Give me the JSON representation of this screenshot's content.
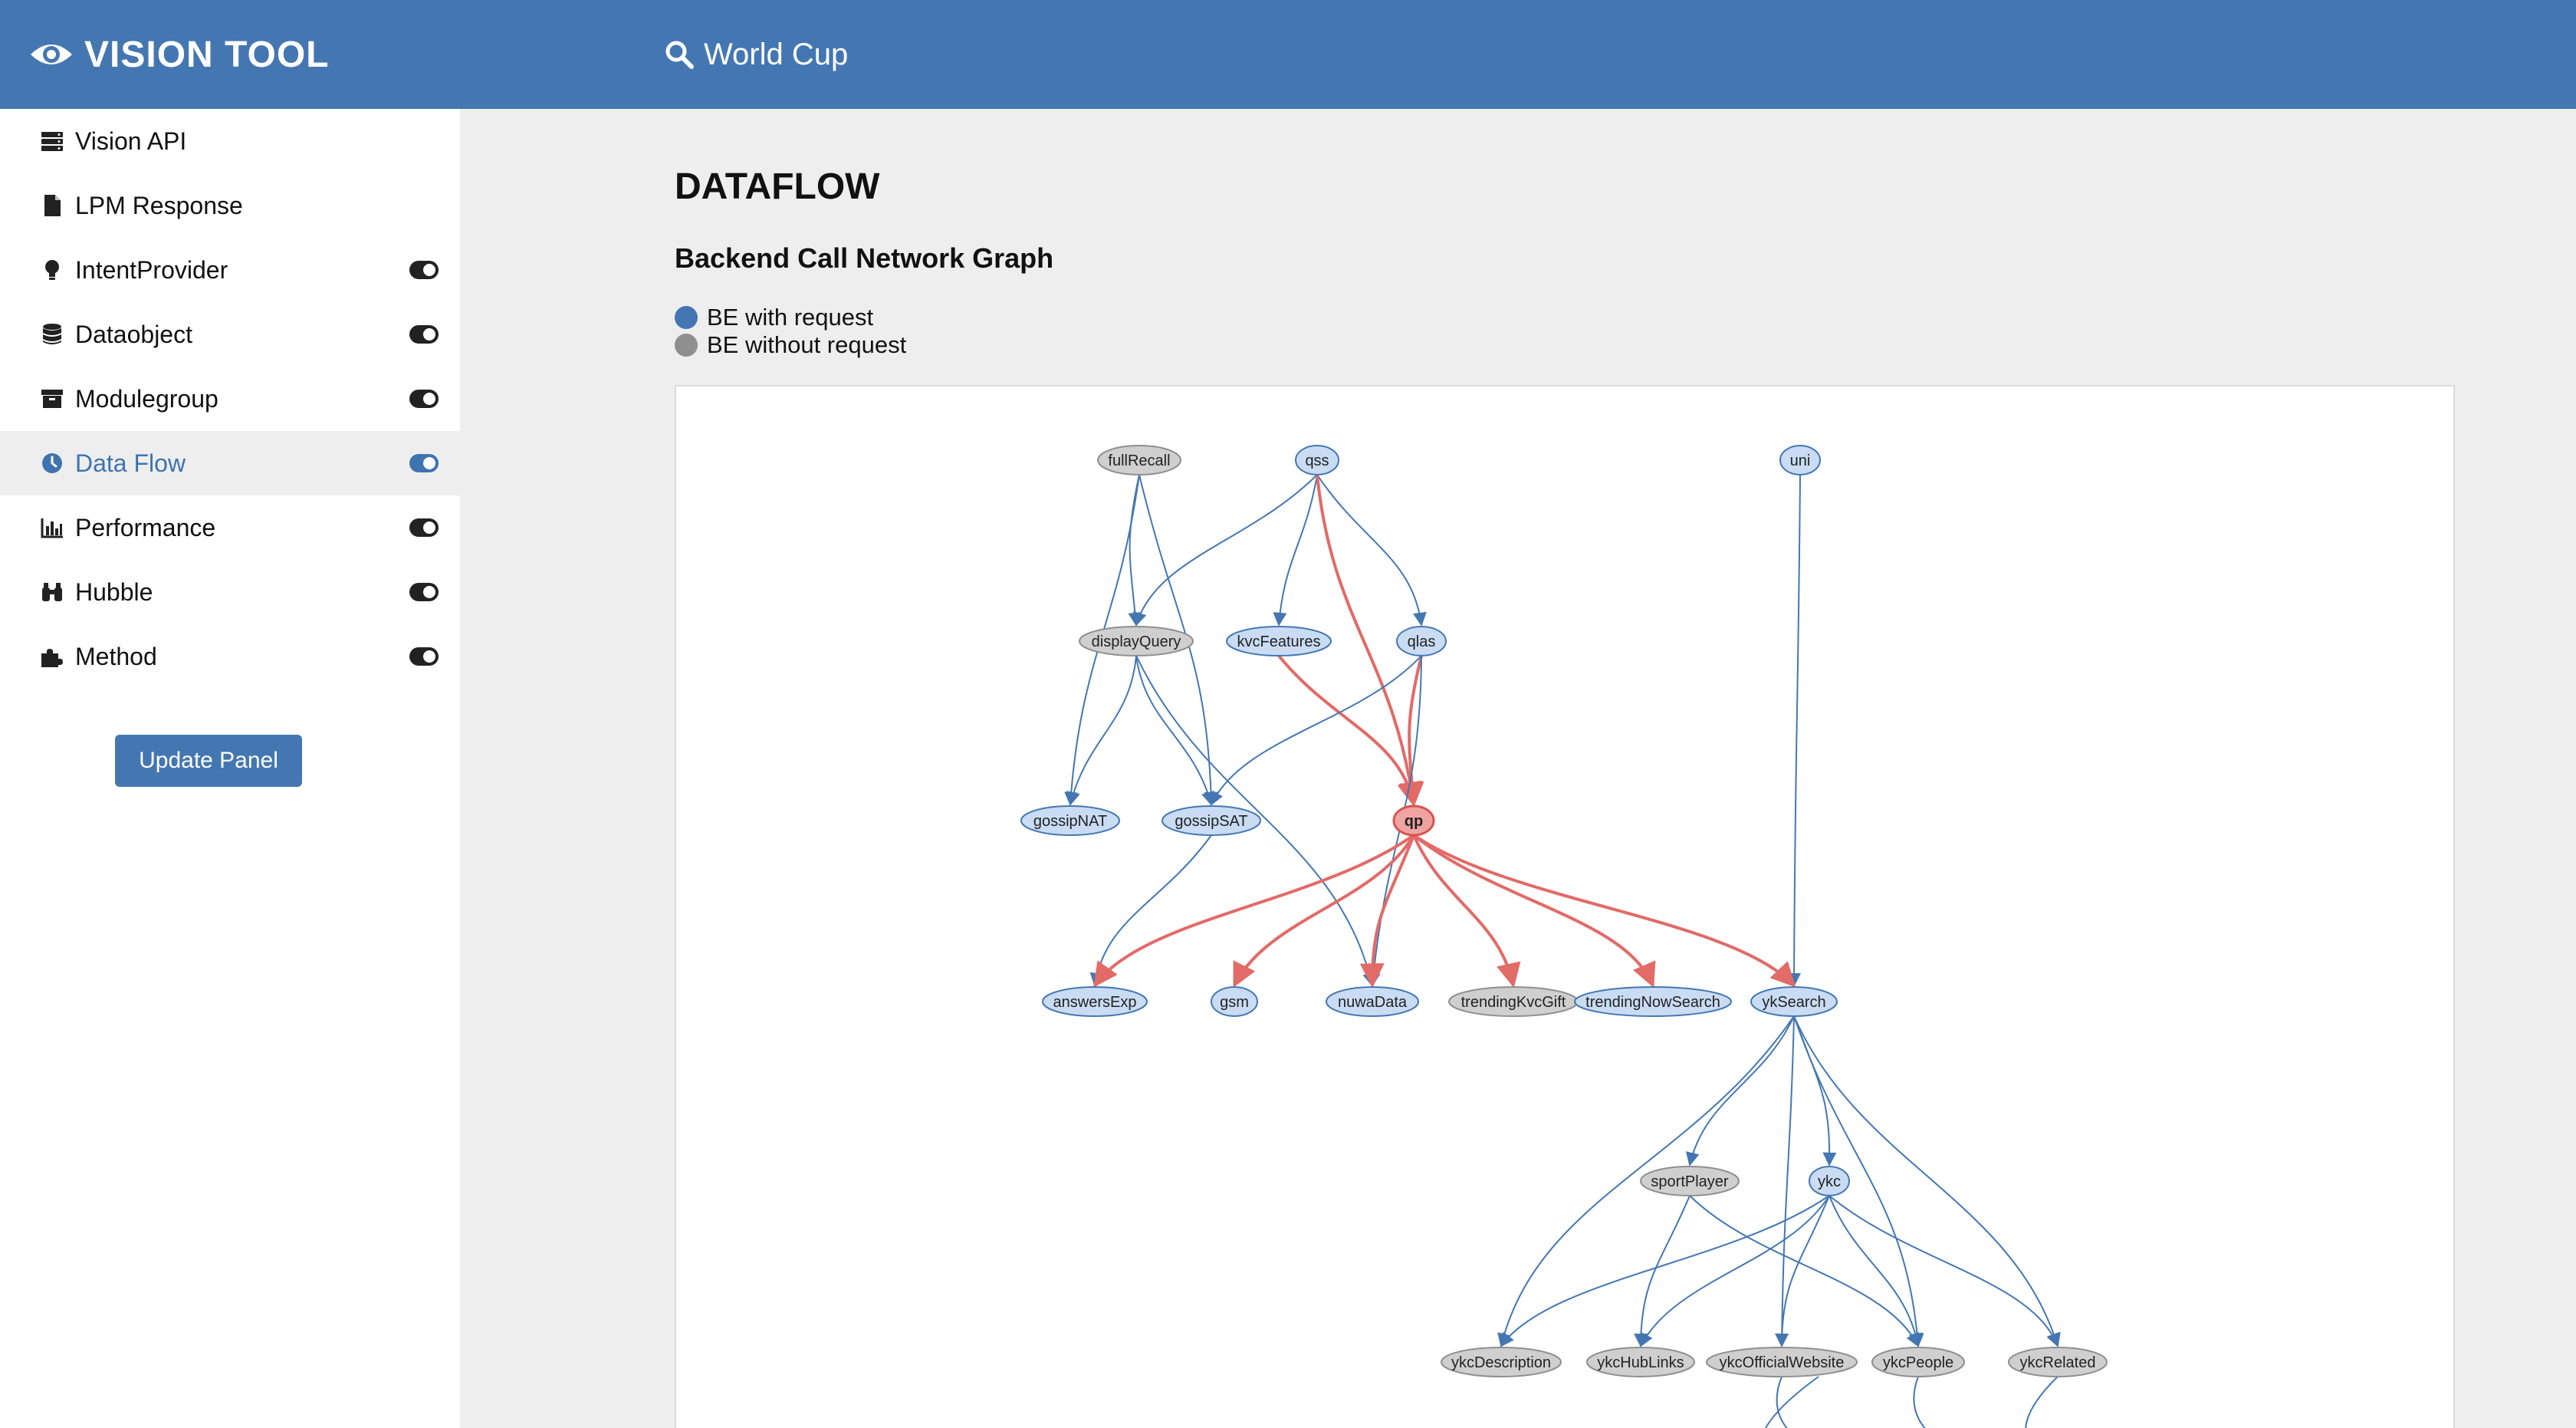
{
  "header": {
    "brand": "VISION TOOL",
    "search_value": "World Cup",
    "icons": [
      "eye-icon",
      "search-icon"
    ]
  },
  "sidebar": {
    "items": [
      {
        "label": "Vision API",
        "icon": "server-icon",
        "toggle": false,
        "active": false
      },
      {
        "label": "LPM Response",
        "icon": "file-icon",
        "toggle": false,
        "active": false
      },
      {
        "label": "IntentProvider",
        "icon": "lightbulb-icon",
        "toggle": true,
        "active": false
      },
      {
        "label": "Dataobject",
        "icon": "database-icon",
        "toggle": true,
        "active": false
      },
      {
        "label": "Modulegroup",
        "icon": "archive-icon",
        "toggle": true,
        "active": false
      },
      {
        "label": "Data Flow",
        "icon": "clock-icon",
        "toggle": true,
        "active": true
      },
      {
        "label": "Performance",
        "icon": "bar-chart-icon",
        "toggle": true,
        "active": false
      },
      {
        "label": "Hubble",
        "icon": "binoculars-icon",
        "toggle": true,
        "active": false
      },
      {
        "label": "Method",
        "icon": "puzzle-icon",
        "toggle": true,
        "active": false
      }
    ],
    "update_button": "Update Panel"
  },
  "main": {
    "title": "DATAFLOW",
    "subtitle": "Backend Call Network Graph",
    "legend": [
      {
        "label": "BE with request",
        "color": "#4477b2"
      },
      {
        "label": "BE without request",
        "color": "#8f8f8f"
      }
    ]
  },
  "graph": {
    "colors": {
      "with_request_fill": "#c9dcf3",
      "with_request_stroke": "#4477b2",
      "without_request_fill": "#cfcfcf",
      "without_request_stroke": "#8f8f8f",
      "highlight_fill": "#f0a3a3",
      "highlight_stroke": "#d9534f",
      "edge": "#4477b2",
      "highlight_edge": "#e26a67"
    },
    "nodes": [
      {
        "id": "fullRecall",
        "label": "fullRecall",
        "type": "without"
      },
      {
        "id": "qss",
        "label": "qss",
        "type": "with"
      },
      {
        "id": "uni",
        "label": "uni",
        "type": "with"
      },
      {
        "id": "displayQuery",
        "label": "displayQuery",
        "type": "without"
      },
      {
        "id": "kvcFeatures",
        "label": "kvcFeatures",
        "type": "with"
      },
      {
        "id": "qlas",
        "label": "qlas",
        "type": "with"
      },
      {
        "id": "gossipNAT",
        "label": "gossipNAT",
        "type": "with"
      },
      {
        "id": "gossipSAT",
        "label": "gossipSAT",
        "type": "with"
      },
      {
        "id": "qp",
        "label": "qp",
        "type": "highlight"
      },
      {
        "id": "answersExp",
        "label": "answersExp",
        "type": "with"
      },
      {
        "id": "gsm",
        "label": "gsm",
        "type": "with"
      },
      {
        "id": "nuwaData",
        "label": "nuwaData",
        "type": "with"
      },
      {
        "id": "trendingKvcGift",
        "label": "trendingKvcGift",
        "type": "without"
      },
      {
        "id": "trendingNowSearch",
        "label": "trendingNowSearch",
        "type": "with"
      },
      {
        "id": "ykSearch",
        "label": "ykSearch",
        "type": "with"
      },
      {
        "id": "sportPlayer",
        "label": "sportPlayer",
        "type": "without"
      },
      {
        "id": "ykc",
        "label": "ykc",
        "type": "with"
      },
      {
        "id": "ykcDescription",
        "label": "ykcDescription",
        "type": "without"
      },
      {
        "id": "ykcHubLinks",
        "label": "ykcHubLinks",
        "type": "without"
      },
      {
        "id": "ykcOfficialWebsite",
        "label": "ykcOfficialWebsite",
        "type": "without"
      },
      {
        "id": "ykcPeople",
        "label": "ykcPeople",
        "type": "without"
      },
      {
        "id": "ykcRelated",
        "label": "ykcRelated",
        "type": "without"
      }
    ],
    "edges": [
      {
        "from": "fullRecall",
        "to": "displayQuery"
      },
      {
        "from": "fullRecall",
        "to": "gossipNAT"
      },
      {
        "from": "fullRecall",
        "to": "gossipSAT"
      },
      {
        "from": "qss",
        "to": "displayQuery"
      },
      {
        "from": "qss",
        "to": "kvcFeatures"
      },
      {
        "from": "qss",
        "to": "qlas"
      },
      {
        "from": "qss",
        "to": "qp",
        "highlight": true
      },
      {
        "from": "uni",
        "to": "ykSearch"
      },
      {
        "from": "displayQuery",
        "to": "gossipNAT"
      },
      {
        "from": "displayQuery",
        "to": "gossipSAT"
      },
      {
        "from": "displayQuery",
        "to": "nuwaData"
      },
      {
        "from": "kvcFeatures",
        "to": "qp",
        "highlight": true
      },
      {
        "from": "qlas",
        "to": "qp",
        "highlight": true
      },
      {
        "from": "qlas",
        "to": "gossipSAT"
      },
      {
        "from": "qlas",
        "to": "nuwaData"
      },
      {
        "from": "gossipSAT",
        "to": "answersExp"
      },
      {
        "from": "qp",
        "to": "answersExp",
        "highlight": true
      },
      {
        "from": "qp",
        "to": "gsm",
        "highlight": true
      },
      {
        "from": "qp",
        "to": "nuwaData",
        "highlight": true
      },
      {
        "from": "qp",
        "to": "trendingKvcGift",
        "highlight": true
      },
      {
        "from": "qp",
        "to": "trendingNowSearch",
        "highlight": true
      },
      {
        "from": "qp",
        "to": "ykSearch",
        "highlight": true
      },
      {
        "from": "ykSearch",
        "to": "sportPlayer"
      },
      {
        "from": "ykSearch",
        "to": "ykc"
      },
      {
        "from": "ykSearch",
        "to": "ykcDescription"
      },
      {
        "from": "ykSearch",
        "to": "ykcOfficialWebsite"
      },
      {
        "from": "ykSearch",
        "to": "ykcPeople"
      },
      {
        "from": "ykSearch",
        "to": "ykcRelated"
      },
      {
        "from": "ykc",
        "to": "ykcDescription"
      },
      {
        "from": "ykc",
        "to": "ykcHubLinks"
      },
      {
        "from": "ykc",
        "to": "ykcOfficialWebsite"
      },
      {
        "from": "ykc",
        "to": "ykcPeople"
      },
      {
        "from": "ykc",
        "to": "ykcRelated"
      },
      {
        "from": "sportPlayer",
        "to": "ykcHubLinks"
      },
      {
        "from": "sportPlayer",
        "to": "ykcPeople"
      }
    ]
  }
}
